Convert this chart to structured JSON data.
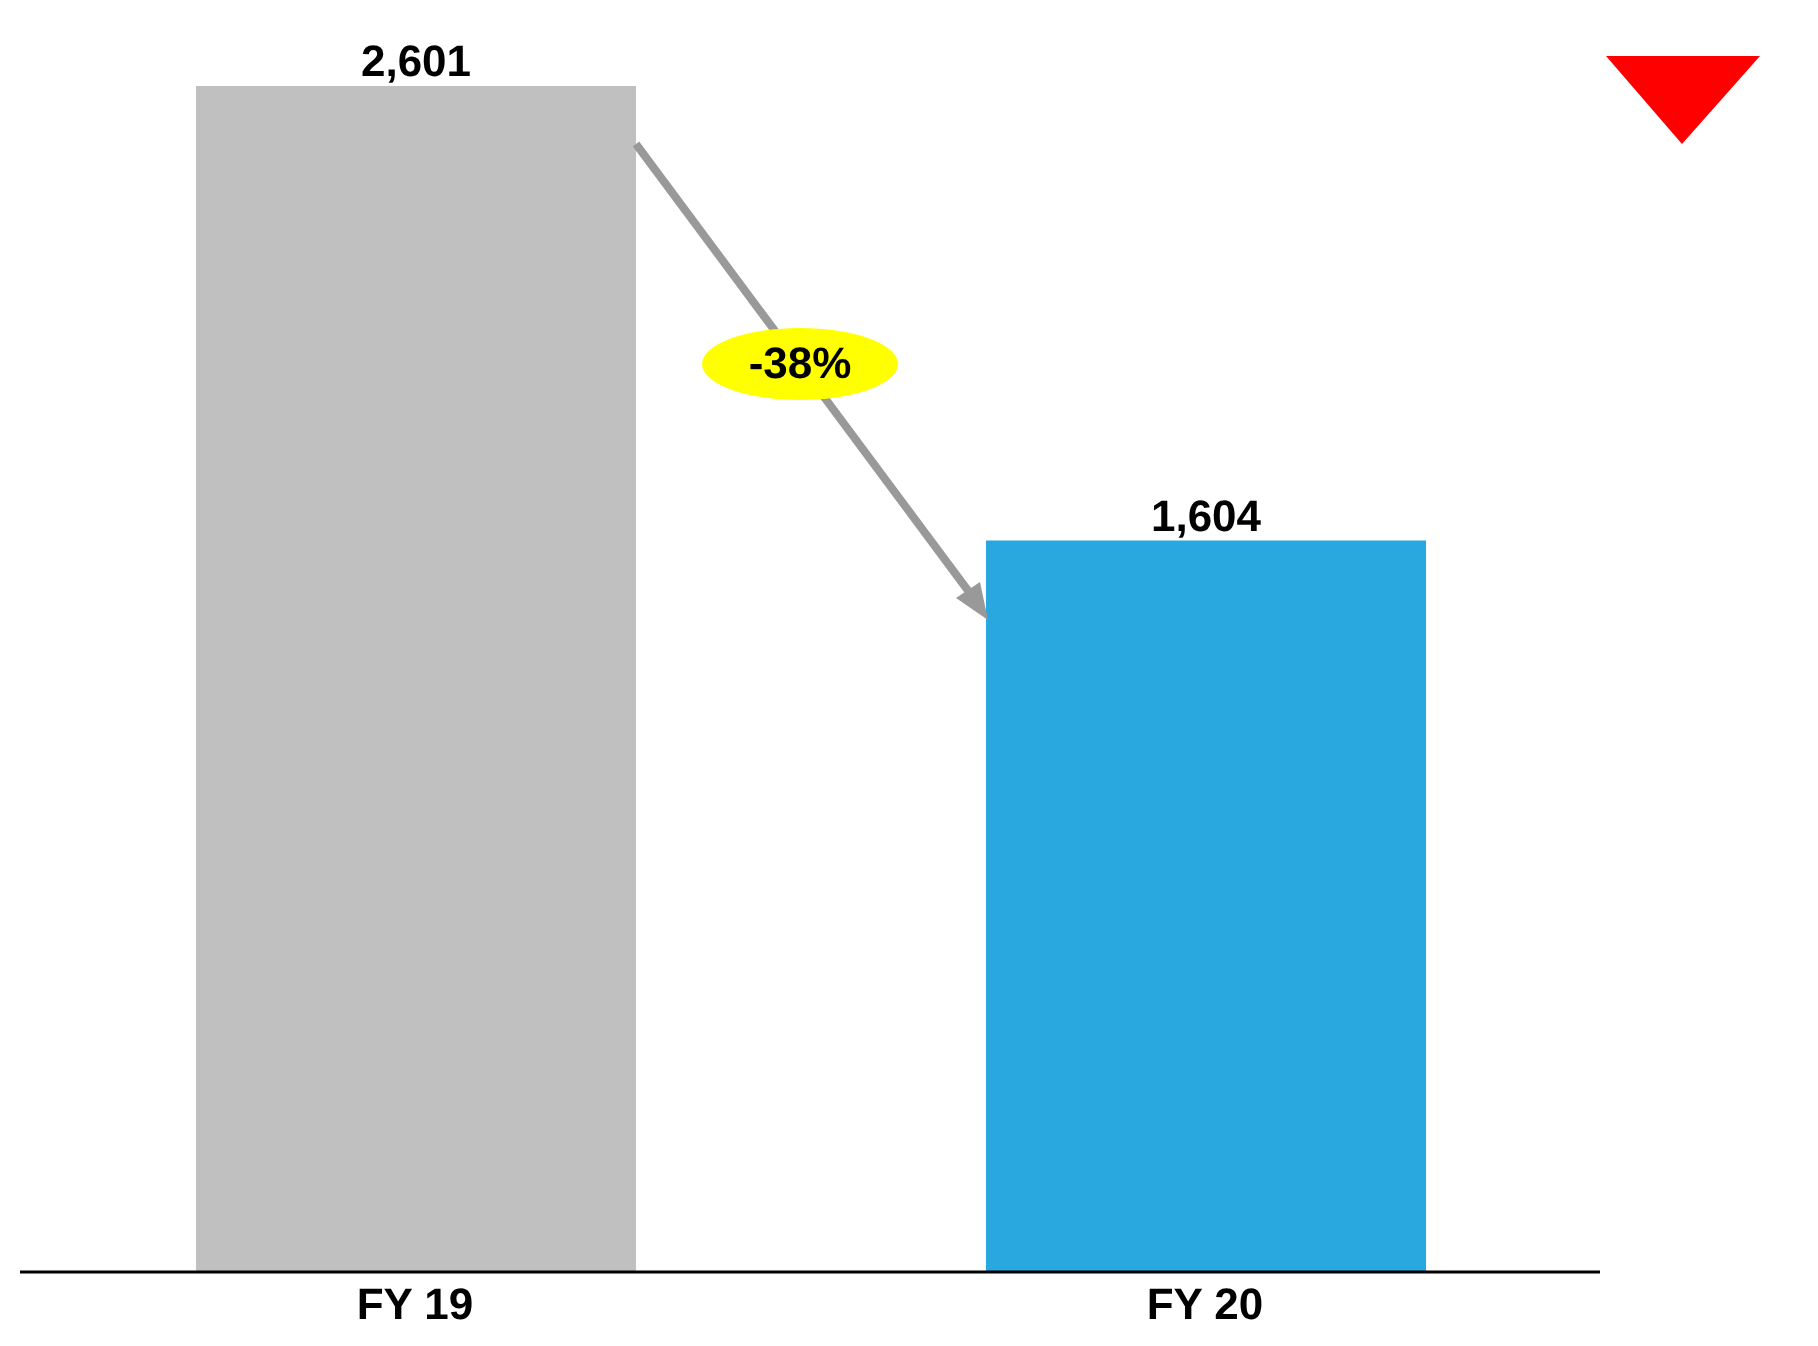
{
  "chart_data": {
    "type": "bar",
    "categories": [
      "FY 19",
      "FY 20"
    ],
    "values": [
      2601,
      1604
    ],
    "value_labels": [
      "2,601",
      "1,604"
    ],
    "colors": [
      "#c0c0c0",
      "#29a8e0"
    ],
    "annotations": [
      "-38%"
    ]
  }
}
